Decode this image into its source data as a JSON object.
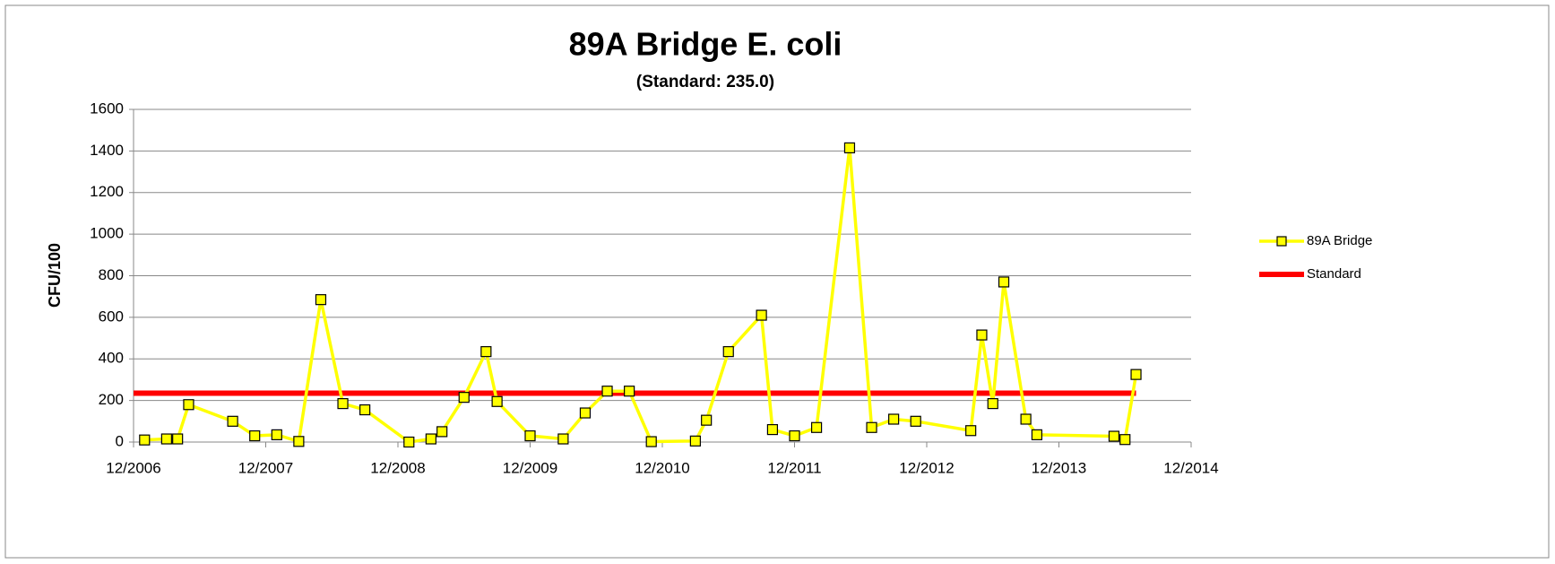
{
  "chart_data": {
    "type": "line",
    "title": "89A Bridge E. coli",
    "subtitle": "(Standard: 235.0)",
    "y_label": "CFU/100",
    "grid": true,
    "legend": "right",
    "xlim": [
      "2006-12",
      "2014-12"
    ],
    "xticks": [
      {
        "value": "2006-12",
        "label": "12/2006"
      },
      {
        "value": "2007-12",
        "label": "12/2007"
      },
      {
        "value": "2008-12",
        "label": "12/2008"
      },
      {
        "value": "2009-12",
        "label": "12/2009"
      },
      {
        "value": "2010-12",
        "label": "12/2010"
      },
      {
        "value": "2011-12",
        "label": "12/2011"
      },
      {
        "value": "2012-12",
        "label": "12/2012"
      },
      {
        "value": "2013-12",
        "label": "12/2013"
      },
      {
        "value": "2014-12",
        "label": "12/2014"
      }
    ],
    "ylim": [
      0,
      1600
    ],
    "yticks": [
      0,
      200,
      400,
      600,
      800,
      1000,
      1200,
      1400,
      1600
    ],
    "series": [
      {
        "name": "89A Bridge",
        "color": "#ffff00",
        "marker": "square",
        "x": [
          "2007-01",
          "2007-03",
          "2007-04",
          "2007-05",
          "2007-09",
          "2007-11",
          "2008-01",
          "2008-03",
          "2008-05",
          "2008-07",
          "2008-09",
          "2009-01",
          "2009-03",
          "2009-04",
          "2009-06",
          "2009-08",
          "2009-09",
          "2009-12",
          "2010-03",
          "2010-05",
          "2010-07",
          "2010-09",
          "2010-11",
          "2011-03",
          "2011-04",
          "2011-06",
          "2011-09",
          "2011-10",
          "2011-12",
          "2012-02",
          "2012-05",
          "2012-07",
          "2012-09",
          "2012-11",
          "2013-04",
          "2013-05",
          "2013-06",
          "2013-07",
          "2013-09",
          "2013-10",
          "2014-05",
          "2014-06",
          "2014-07"
        ],
        "values": [
          10,
          15,
          15,
          180,
          100,
          30,
          35,
          3,
          685,
          185,
          155,
          0,
          15,
          50,
          215,
          435,
          195,
          30,
          15,
          140,
          245,
          245,
          2,
          5,
          105,
          435,
          610,
          60,
          30,
          70,
          1415,
          70,
          110,
          100,
          55,
          515,
          185,
          770,
          110,
          35,
          28,
          12,
          325
        ]
      },
      {
        "name": "Standard",
        "color": "#ff0000",
        "x": [
          "2006-12",
          "2014-07"
        ],
        "values": [
          235,
          235
        ]
      }
    ]
  }
}
